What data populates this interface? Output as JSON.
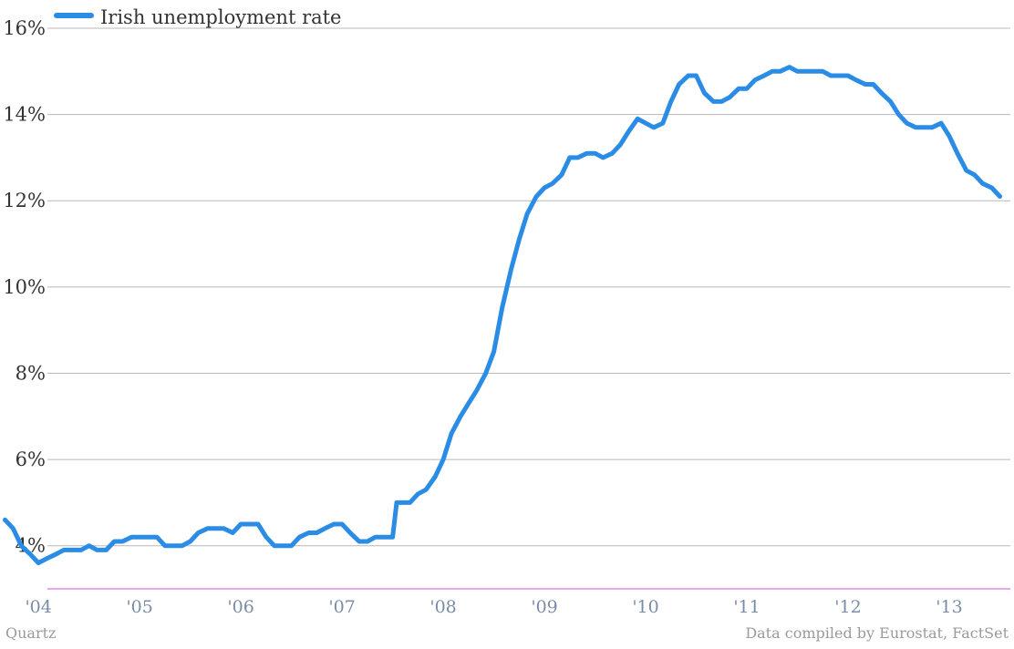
{
  "chart_data": {
    "type": "line",
    "ylim": [
      3,
      16
    ],
    "y_ticks": [
      4,
      6,
      8,
      10,
      12,
      14,
      16
    ],
    "y_tick_labels": [
      "4%",
      "6%",
      "8%",
      "10%",
      "12%",
      "14%",
      "16%"
    ],
    "x_ticks": [
      2004,
      2005,
      2006,
      2007,
      2008,
      2009,
      2010,
      2011,
      2012,
      2013
    ],
    "x_tick_labels": [
      "'04",
      "'05",
      "'06",
      "'07",
      "'08",
      "'09",
      "'10",
      "'11",
      "'12",
      "'13"
    ],
    "xlim": [
      2003.62,
      2013.64
    ],
    "grid": true,
    "legend_position": "top-left",
    "series": [
      {
        "name": "Irish unemployment rate",
        "color": "#2b8ce6",
        "points": [
          [
            2003.67,
            4.6
          ],
          [
            2003.75,
            4.4
          ],
          [
            2003.83,
            4.0
          ],
          [
            2003.92,
            3.8
          ],
          [
            2004.0,
            3.6
          ],
          [
            2004.08,
            3.7
          ],
          [
            2004.17,
            3.8
          ],
          [
            2004.25,
            3.9
          ],
          [
            2004.33,
            3.9
          ],
          [
            2004.42,
            3.9
          ],
          [
            2004.5,
            4.0
          ],
          [
            2004.58,
            3.9
          ],
          [
            2004.67,
            3.9
          ],
          [
            2004.75,
            4.1
          ],
          [
            2004.83,
            4.1
          ],
          [
            2004.92,
            4.2
          ],
          [
            2005.0,
            4.2
          ],
          [
            2005.08,
            4.2
          ],
          [
            2005.17,
            4.2
          ],
          [
            2005.25,
            4.0
          ],
          [
            2005.33,
            4.0
          ],
          [
            2005.42,
            4.0
          ],
          [
            2005.5,
            4.1
          ],
          [
            2005.58,
            4.3
          ],
          [
            2005.67,
            4.4
          ],
          [
            2005.75,
            4.4
          ],
          [
            2005.83,
            4.4
          ],
          [
            2005.92,
            4.3
          ],
          [
            2006.0,
            4.5
          ],
          [
            2006.08,
            4.5
          ],
          [
            2006.17,
            4.5
          ],
          [
            2006.25,
            4.2
          ],
          [
            2006.33,
            4.0
          ],
          [
            2006.42,
            4.0
          ],
          [
            2006.5,
            4.0
          ],
          [
            2006.58,
            4.2
          ],
          [
            2006.67,
            4.3
          ],
          [
            2006.75,
            4.3
          ],
          [
            2006.83,
            4.4
          ],
          [
            2006.92,
            4.5
          ],
          [
            2007.0,
            4.5
          ],
          [
            2007.08,
            4.3
          ],
          [
            2007.17,
            4.1
          ],
          [
            2007.25,
            4.1
          ],
          [
            2007.33,
            4.2
          ],
          [
            2007.42,
            4.2
          ],
          [
            2007.5,
            4.2
          ],
          [
            2007.54,
            5.0
          ],
          [
            2007.58,
            5.0
          ],
          [
            2007.67,
            5.0
          ],
          [
            2007.75,
            5.2
          ],
          [
            2007.83,
            5.3
          ],
          [
            2007.92,
            5.6
          ],
          [
            2008.0,
            6.0
          ],
          [
            2008.08,
            6.6
          ],
          [
            2008.17,
            7.0
          ],
          [
            2008.25,
            7.3
          ],
          [
            2008.33,
            7.6
          ],
          [
            2008.42,
            8.0
          ],
          [
            2008.5,
            8.5
          ],
          [
            2008.58,
            9.5
          ],
          [
            2008.67,
            10.4
          ],
          [
            2008.75,
            11.1
          ],
          [
            2008.83,
            11.7
          ],
          [
            2008.92,
            12.1
          ],
          [
            2009.0,
            12.3
          ],
          [
            2009.08,
            12.4
          ],
          [
            2009.17,
            12.6
          ],
          [
            2009.25,
            13.0
          ],
          [
            2009.33,
            13.0
          ],
          [
            2009.42,
            13.1
          ],
          [
            2009.5,
            13.1
          ],
          [
            2009.58,
            13.0
          ],
          [
            2009.67,
            13.1
          ],
          [
            2009.75,
            13.3
          ],
          [
            2009.83,
            13.6
          ],
          [
            2009.92,
            13.9
          ],
          [
            2010.0,
            13.8
          ],
          [
            2010.08,
            13.7
          ],
          [
            2010.17,
            13.8
          ],
          [
            2010.25,
            14.3
          ],
          [
            2010.33,
            14.7
          ],
          [
            2010.42,
            14.9
          ],
          [
            2010.5,
            14.9
          ],
          [
            2010.58,
            14.5
          ],
          [
            2010.67,
            14.3
          ],
          [
            2010.75,
            14.3
          ],
          [
            2010.83,
            14.4
          ],
          [
            2010.92,
            14.6
          ],
          [
            2011.0,
            14.6
          ],
          [
            2011.08,
            14.8
          ],
          [
            2011.17,
            14.9
          ],
          [
            2011.25,
            15.0
          ],
          [
            2011.33,
            15.0
          ],
          [
            2011.42,
            15.1
          ],
          [
            2011.5,
            15.0
          ],
          [
            2011.58,
            15.0
          ],
          [
            2011.67,
            15.0
          ],
          [
            2011.75,
            15.0
          ],
          [
            2011.83,
            14.9
          ],
          [
            2011.92,
            14.9
          ],
          [
            2012.0,
            14.9
          ],
          [
            2012.08,
            14.8
          ],
          [
            2012.17,
            14.7
          ],
          [
            2012.25,
            14.7
          ],
          [
            2012.33,
            14.5
          ],
          [
            2012.42,
            14.3
          ],
          [
            2012.5,
            14.0
          ],
          [
            2012.58,
            13.8
          ],
          [
            2012.67,
            13.7
          ],
          [
            2012.75,
            13.7
          ],
          [
            2012.83,
            13.7
          ],
          [
            2012.92,
            13.8
          ],
          [
            2013.0,
            13.5
          ],
          [
            2013.08,
            13.1
          ],
          [
            2013.17,
            12.7
          ],
          [
            2013.25,
            12.6
          ],
          [
            2013.33,
            12.4
          ],
          [
            2013.42,
            12.3
          ],
          [
            2013.5,
            12.1
          ]
        ]
      }
    ]
  },
  "footer": {
    "credit_left": "Quartz",
    "credit_right": "Data compiled by Eurostat, FactSet"
  },
  "colors": {
    "line": "#2b8ce6",
    "baseline": "#e070e0",
    "gridline": "#b8b8b8"
  }
}
